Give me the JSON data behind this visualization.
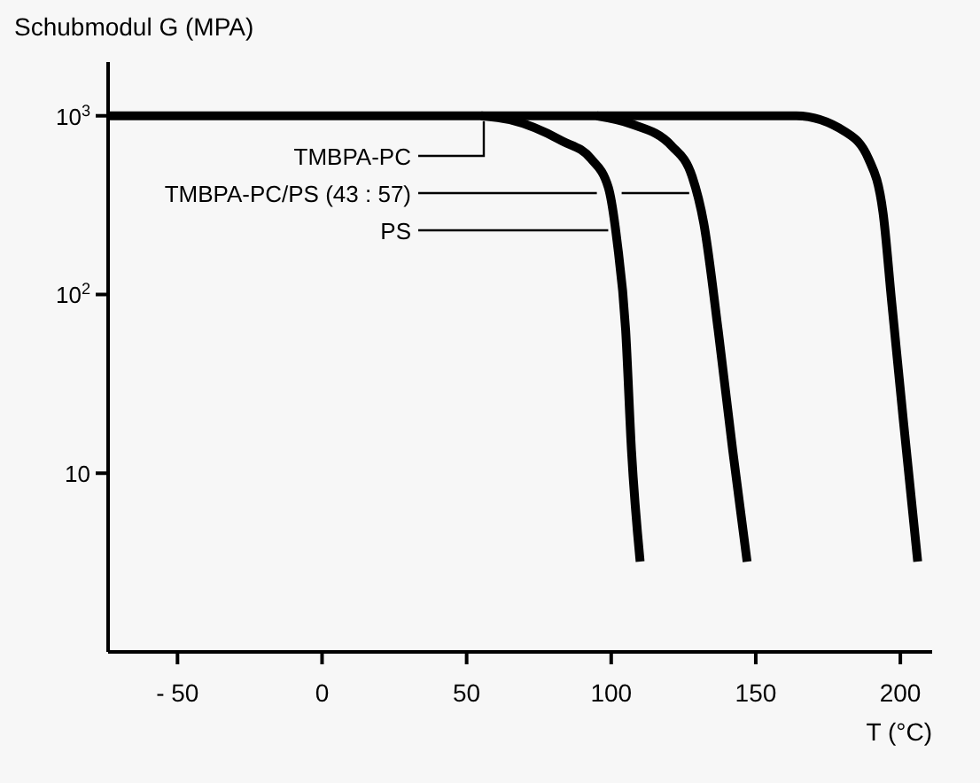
{
  "chart_data": {
    "type": "line",
    "ylabel": "Schubmodul G (MPA)",
    "xlabel": "T (°C)",
    "xlim": [
      -74,
      211
    ],
    "xticks": [
      {
        "value": -50,
        "label": "- 50"
      },
      0,
      50,
      100,
      150,
      200
    ],
    "ylim": [
      1,
      2000
    ],
    "log": "y",
    "yticks": [
      {
        "value": 10,
        "label": "10"
      },
      {
        "value": 100,
        "label": "10$^{2}$"
      },
      {
        "value": 1000,
        "label": "10$^{3}$"
      }
    ],
    "grid": false,
    "line_style": "solid",
    "series": [
      {
        "name": "TMBPA-PC",
        "color": "#000000",
        "x": [
          -74,
          150,
          164,
          181,
          189,
          194,
          197,
          201,
          206
        ],
        "values": [
          1000,
          1000,
          1000,
          813,
          575,
          288,
          91,
          20,
          3.2
        ]
      },
      {
        "name": "TMBPA-PC/PS (43 : 57)",
        "color": "#000000",
        "x": [
          95,
          107,
          121,
          128,
          132,
          137,
          142,
          147
        ],
        "values": [
          1000,
          900,
          676,
          457,
          251,
          63,
          13.5,
          3.2
        ]
      },
      {
        "name": "PS",
        "color": "#000000",
        "x": [
          55,
          65,
          83,
          93,
          99,
          102,
          105,
          107,
          110
        ],
        "values": [
          1000,
          950,
          724,
          575,
          398,
          200,
          63,
          13.5,
          3.2
        ]
      }
    ]
  }
}
